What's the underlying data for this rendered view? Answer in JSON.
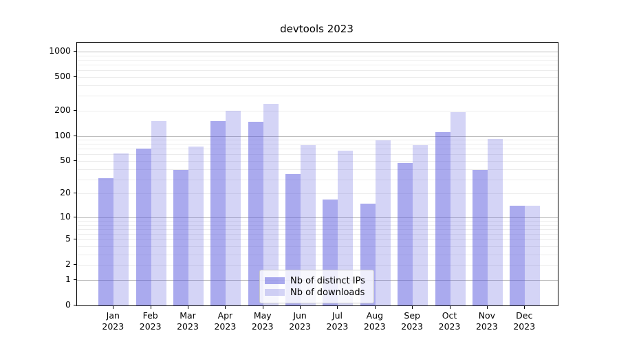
{
  "chart_data": {
    "type": "bar",
    "title": "devtools 2023",
    "categories": [
      {
        "label": "Jan",
        "sub": "2023"
      },
      {
        "label": "Feb",
        "sub": "2023"
      },
      {
        "label": "Mar",
        "sub": "2023"
      },
      {
        "label": "Apr",
        "sub": "2023"
      },
      {
        "label": "May",
        "sub": "2023"
      },
      {
        "label": "Jun",
        "sub": "2023"
      },
      {
        "label": "Jul",
        "sub": "2023"
      },
      {
        "label": "Aug",
        "sub": "2023"
      },
      {
        "label": "Sep",
        "sub": "2023"
      },
      {
        "label": "Oct",
        "sub": "2023"
      },
      {
        "label": "Nov",
        "sub": "2023"
      },
      {
        "label": "Dec",
        "sub": "2023"
      }
    ],
    "series": [
      {
        "name": "Nb of distinct IPs",
        "color": "rgba(85,85,221,0.5)",
        "values": [
          31,
          71,
          39,
          151,
          147,
          35,
          17,
          15,
          47,
          110,
          39,
          14
        ]
      },
      {
        "name": "Nb of downloads",
        "color": "rgba(85,85,221,0.25)",
        "values": [
          62,
          150,
          75,
          200,
          240,
          77,
          66,
          89,
          78,
          193,
          92,
          14
        ]
      }
    ],
    "yscale": "log10(value+1)",
    "ylim": [
      0,
      1276
    ],
    "yticks": [
      0,
      1,
      2,
      5,
      10,
      20,
      50,
      100,
      200,
      500,
      1000
    ],
    "y_major_gridline_values": [
      1,
      10,
      100,
      1000
    ],
    "grid": "on",
    "legend_position": "lower center",
    "colors": {
      "major_grid": "#bcbcbc",
      "minor_grid": "#ececec",
      "spine": "#000000"
    },
    "xlabel": "",
    "ylabel": ""
  }
}
